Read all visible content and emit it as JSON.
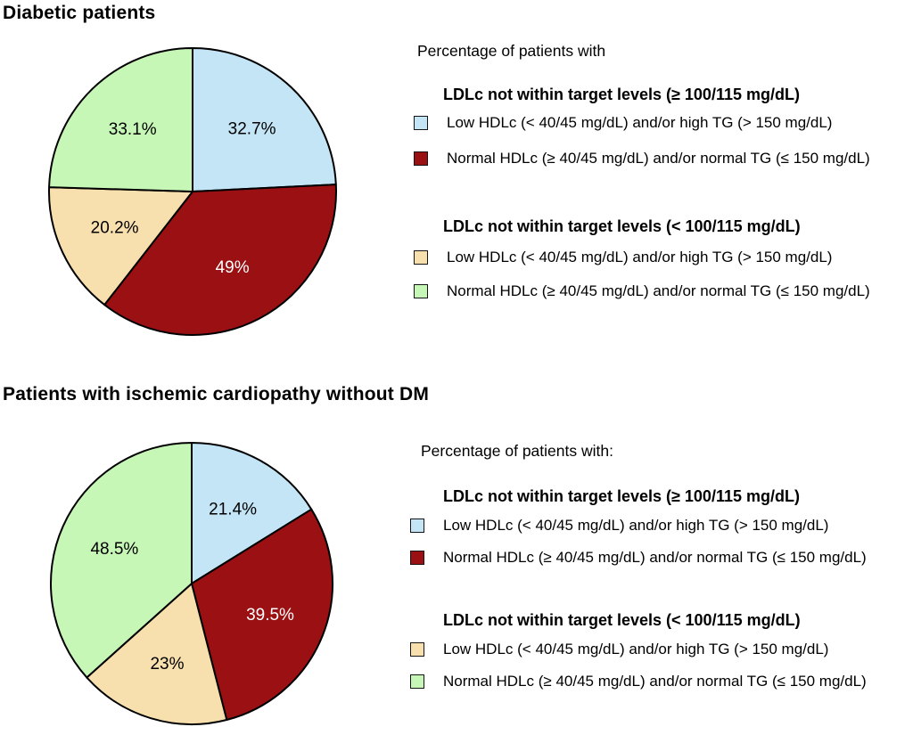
{
  "figure": {
    "background": "#ffffff",
    "palette": {
      "light_blue": "#c3e5f6",
      "dark_red": "#9a1013",
      "tan": "#f8dfae",
      "light_green": "#c7f7b7",
      "outline": "#000000"
    }
  },
  "sections": [
    {
      "heading": "Diabetic patients",
      "legend": {
        "intro": "Percentage of patients with",
        "groups": [
          {
            "heading": "LDLc not within target levels (≥ 100/115 mg/dL)",
            "items": [
              {
                "swatch_color": "#c3e5f6",
                "label": "Low HDLc (< 40/45 mg/dL) and/or high TG (> 150 mg/dL)"
              },
              {
                "swatch_color": "#9a1013",
                "label": "Normal HDLc (≥ 40/45 mg/dL) and/or normal TG (≤ 150 mg/dL)"
              }
            ]
          },
          {
            "heading": "LDLc not within target levels (< 100/115 mg/dL)",
            "items": [
              {
                "swatch_color": "#f8dfae",
                "label": "Low HDLc (< 40/45 mg/dL) and/or high TG (> 150 mg/dL)"
              },
              {
                "swatch_color": "#c7f7b7",
                "label": "Normal HDLc (≥ 40/45 mg/dL) and/or normal TG (≤ 150 mg/dL)"
              }
            ]
          }
        ]
      }
    },
    {
      "heading": "Patients with ischemic cardiopathy without DM",
      "legend": {
        "intro": "Percentage of patients with:",
        "groups": [
          {
            "heading": "LDLc not within target levels (≥ 100/115 mg/dL)",
            "items": [
              {
                "swatch_color": "#c3e5f6",
                "label": "Low HDLc (< 40/45 mg/dL) and/or high TG (> 150 mg/dL)"
              },
              {
                "swatch_color": "#9a1013",
                "label": "Normal HDLc (≥ 40/45 mg/dL) and/or normal TG (≤ 150 mg/dL)"
              }
            ]
          },
          {
            "heading": "LDLc not within target levels (< 100/115 mg/dL)",
            "items": [
              {
                "swatch_color": "#f8dfae",
                "label": "Low HDLc (< 40/45 mg/dL) and/or high TG (> 150 mg/dL)"
              },
              {
                "swatch_color": "#c7f7b7",
                "label": "Normal HDLc (≥ 40/45 mg/dL) and/or normal TG (≤ 150 mg/dL)"
              }
            ]
          }
        ]
      }
    }
  ],
  "chart_data": [
    {
      "type": "pie",
      "title": "Diabetic patients",
      "legend_position": "right",
      "direction": "clockwise",
      "start_angle_deg": 0,
      "angle_rule": "slice angle = value / sum(values) × 360°",
      "slices": [
        {
          "label": "32.7%",
          "value": 32.7,
          "color": "#c3e5f6",
          "label_color": "#000000",
          "series": "LDLc not within target levels (≥ 100/115 mg/dL) — Low HDLc (< 40/45 mg/dL) and/or high TG (> 150 mg/dL)"
        },
        {
          "label": "49%",
          "value": 49,
          "color": "#9a1013",
          "label_color": "#ffffff",
          "series": "LDLc not within target levels (≥ 100/115 mg/dL) — Normal HDLc (≥ 40/45 mg/dL) and/or normal TG (≤ 150 mg/dL)"
        },
        {
          "label": "20.2%",
          "value": 20.2,
          "color": "#f8dfae",
          "label_color": "#000000",
          "series": "LDLc not within target levels (< 100/115 mg/dL) — Low HDLc (< 40/45 mg/dL) and/or high TG (> 150 mg/dL)"
        },
        {
          "label": "33.1%",
          "value": 33.1,
          "color": "#c7f7b7",
          "label_color": "#000000",
          "series": "LDLc not within target levels (< 100/115 mg/dL) — Normal HDLc (≥ 40/45 mg/dL) and/or normal TG (≤ 150 mg/dL)"
        }
      ]
    },
    {
      "type": "pie",
      "title": "Patients with ischemic cardiopathy without DM",
      "legend_position": "right",
      "direction": "clockwise",
      "start_angle_deg": 0,
      "angle_rule": "slice angle = value / sum(values) × 360°",
      "slices": [
        {
          "label": "21.4%",
          "value": 21.4,
          "color": "#c3e5f6",
          "label_color": "#000000",
          "series": "LDLc not within target levels (≥ 100/115 mg/dL) — Low HDLc (< 40/45 mg/dL) and/or high TG (> 150 mg/dL)"
        },
        {
          "label": "39.5%",
          "value": 39.5,
          "color": "#9a1013",
          "label_color": "#ffffff",
          "series": "LDLc not within target levels (≥ 100/115 mg/dL) — Normal HDLc (≥ 40/45 mg/dL) and/or normal TG (≤ 150 mg/dL)"
        },
        {
          "label": "23%",
          "value": 23,
          "color": "#f8dfae",
          "label_color": "#000000",
          "series": "LDLc not within target levels (< 100/115 mg/dL) — Low HDLc (< 40/45 mg/dL) and/or high TG (> 150 mg/dL)"
        },
        {
          "label": "48.5%",
          "value": 48.5,
          "color": "#c7f7b7",
          "label_color": "#000000",
          "series": "LDLc not within target levels (< 100/115 mg/dL) — Normal HDLc (≥ 40/45 mg/dL) and/or normal TG (≤ 150 mg/dL)"
        }
      ]
    }
  ]
}
